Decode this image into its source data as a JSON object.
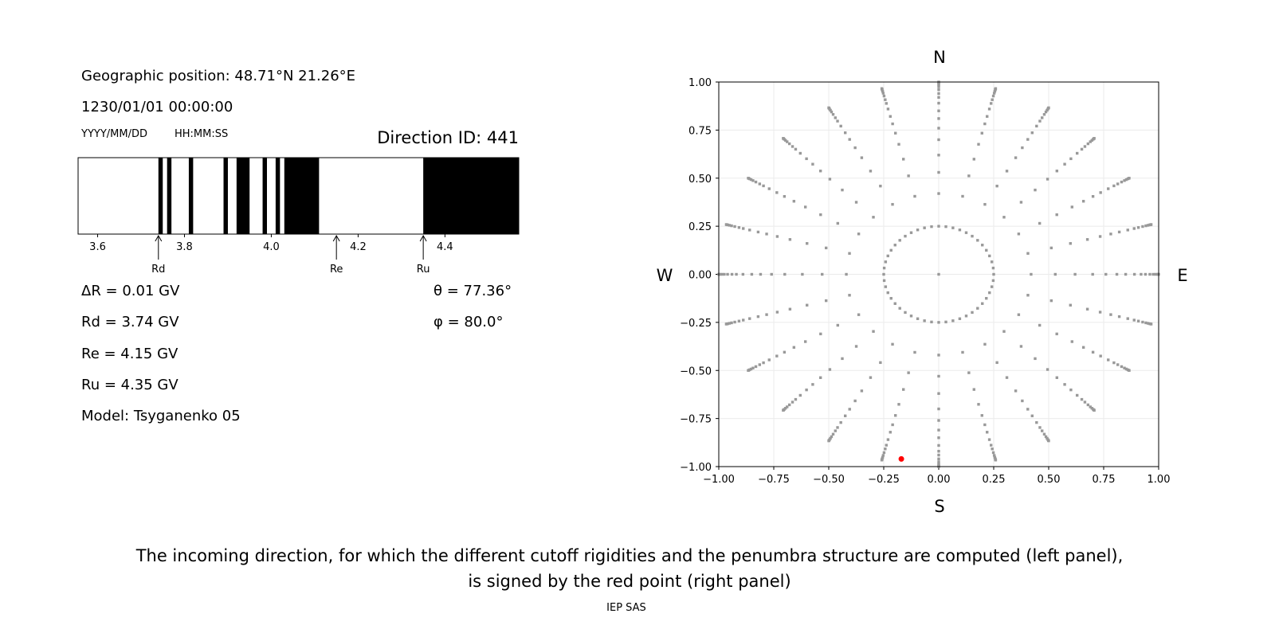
{
  "info": {
    "geo": "Geographic position: 48.71°N 21.26°E",
    "datetime": "1230/01/01 00:00:00",
    "date_fmt": "YYYY/MM/DD",
    "time_fmt": "HH:MM:SS",
    "direction": "Direction ID: 441",
    "dR": "ΔR = 0.01 GV",
    "Rd": "Rd = 3.74 GV",
    "Re": "Re = 4.15 GV",
    "Ru": "Ru = 4.35 GV",
    "model": "Model: Tsyganenko 05",
    "theta": "θ = 77.36°",
    "phi": "φ = 80.0°"
  },
  "caption": {
    "line1": "The incoming direction, for which the different cutoff rigidities and the penumbra structure are computed (left panel),",
    "line2": "is signed by the red point (right panel)",
    "credit": "IEP SAS"
  },
  "chart_data": [
    {
      "type": "bar",
      "xlim": [
        3.555,
        4.57
      ],
      "xticks": [
        "3.6",
        "3.8",
        "4.0",
        "4.2",
        "4.4"
      ],
      "forbidden_bands": [
        [
          3.74,
          3.75
        ],
        [
          3.76,
          3.77
        ],
        [
          3.81,
          3.82
        ],
        [
          3.89,
          3.9
        ],
        [
          3.92,
          3.95
        ],
        [
          3.98,
          3.99
        ],
        [
          4.01,
          4.02
        ],
        [
          4.03,
          4.11
        ],
        [
          4.35,
          4.57
        ]
      ],
      "markers": [
        {
          "label": "Rd",
          "x": 3.74
        },
        {
          "label": "Re",
          "x": 4.15
        },
        {
          "label": "Ru",
          "x": 4.35
        }
      ],
      "colors": {
        "forbidden": "#000000",
        "allowed": "#ffffff"
      }
    },
    {
      "type": "scatter",
      "xlim": [
        -1,
        1
      ],
      "ylim": [
        -1,
        1
      ],
      "grid": true,
      "xticks": [
        "−1.00",
        "−0.75",
        "−0.50",
        "−0.25",
        "0.00",
        "0.25",
        "0.50",
        "0.75",
        "1.00"
      ],
      "yticks": [
        "−1.00",
        "−0.75",
        "−0.50",
        "−0.25",
        "0.00",
        "0.25",
        "0.50",
        "0.75",
        "1.00"
      ],
      "compass": {
        "N": "N",
        "S": "S",
        "E": "E",
        "W": "W"
      },
      "grid_points": {
        "azimuth_step_deg": 15,
        "inner_circle_radius": 0.25,
        "inner_circle_count": 48,
        "ray_radii": [
          0.42,
          0.53,
          0.62,
          0.7,
          0.76,
          0.81,
          0.85,
          0.89,
          0.92,
          0.94,
          0.96,
          0.975,
          0.985,
          0.993,
          0.998,
          1.0
        ],
        "center": [
          0,
          0
        ]
      },
      "highlight": {
        "x": -0.17,
        "y": -0.96
      },
      "colors": {
        "points": "#999999",
        "highlight": "#ff0000"
      }
    }
  ]
}
